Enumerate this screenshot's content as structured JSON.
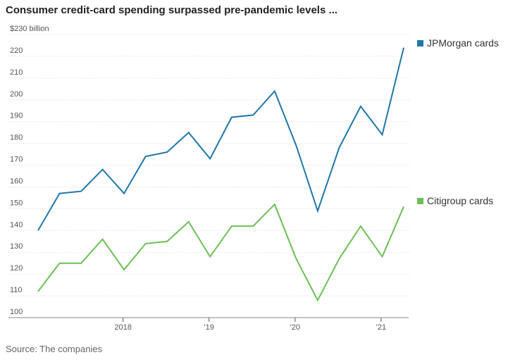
{
  "chart_data": {
    "type": "line",
    "title": "Consumer credit-card spending surpassed pre-pandemic levels ...",
    "source": "Source: The companies",
    "xlabel": "",
    "ylabel": "",
    "ylim": [
      100,
      230
    ],
    "y_ticks": [
      100,
      110,
      120,
      130,
      140,
      150,
      160,
      170,
      180,
      190,
      200,
      210,
      220,
      230
    ],
    "y_tick_labels": [
      "100",
      "110",
      "120",
      "130",
      "140",
      "150",
      "160",
      "170",
      "180",
      "190",
      "200",
      "210",
      "220",
      "$230 billion"
    ],
    "x_ticks": [
      {
        "at": 4,
        "label": "2018"
      },
      {
        "at": 8,
        "label": "'19"
      },
      {
        "at": 12,
        "label": "'20"
      },
      {
        "at": 16,
        "label": "'21"
      }
    ],
    "grid": true,
    "legend": "inline-right",
    "x": [
      "Q1 2017",
      "Q2 2017",
      "Q3 2017",
      "Q4 2017",
      "Q1 2018",
      "Q2 2018",
      "Q3 2018",
      "Q4 2018",
      "Q1 2019",
      "Q2 2019",
      "Q3 2019",
      "Q4 2019",
      "Q1 2020",
      "Q2 2020",
      "Q3 2020",
      "Q4 2020",
      "Q1 2021",
      "Q2 2021"
    ],
    "series": [
      {
        "name": "JPMorgan cards",
        "color": "#1f77a8",
        "values": [
          140,
          157,
          158,
          168,
          157,
          174,
          176,
          185,
          173,
          192,
          193,
          204,
          179,
          149,
          178,
          197,
          184,
          224
        ]
      },
      {
        "name": "Citigroup cards",
        "color": "#6cbf56",
        "values": [
          112,
          125,
          125,
          136,
          122,
          134,
          135,
          144,
          128,
          142,
          142,
          152,
          127,
          108,
          127,
          142,
          128,
          151
        ]
      }
    ]
  }
}
